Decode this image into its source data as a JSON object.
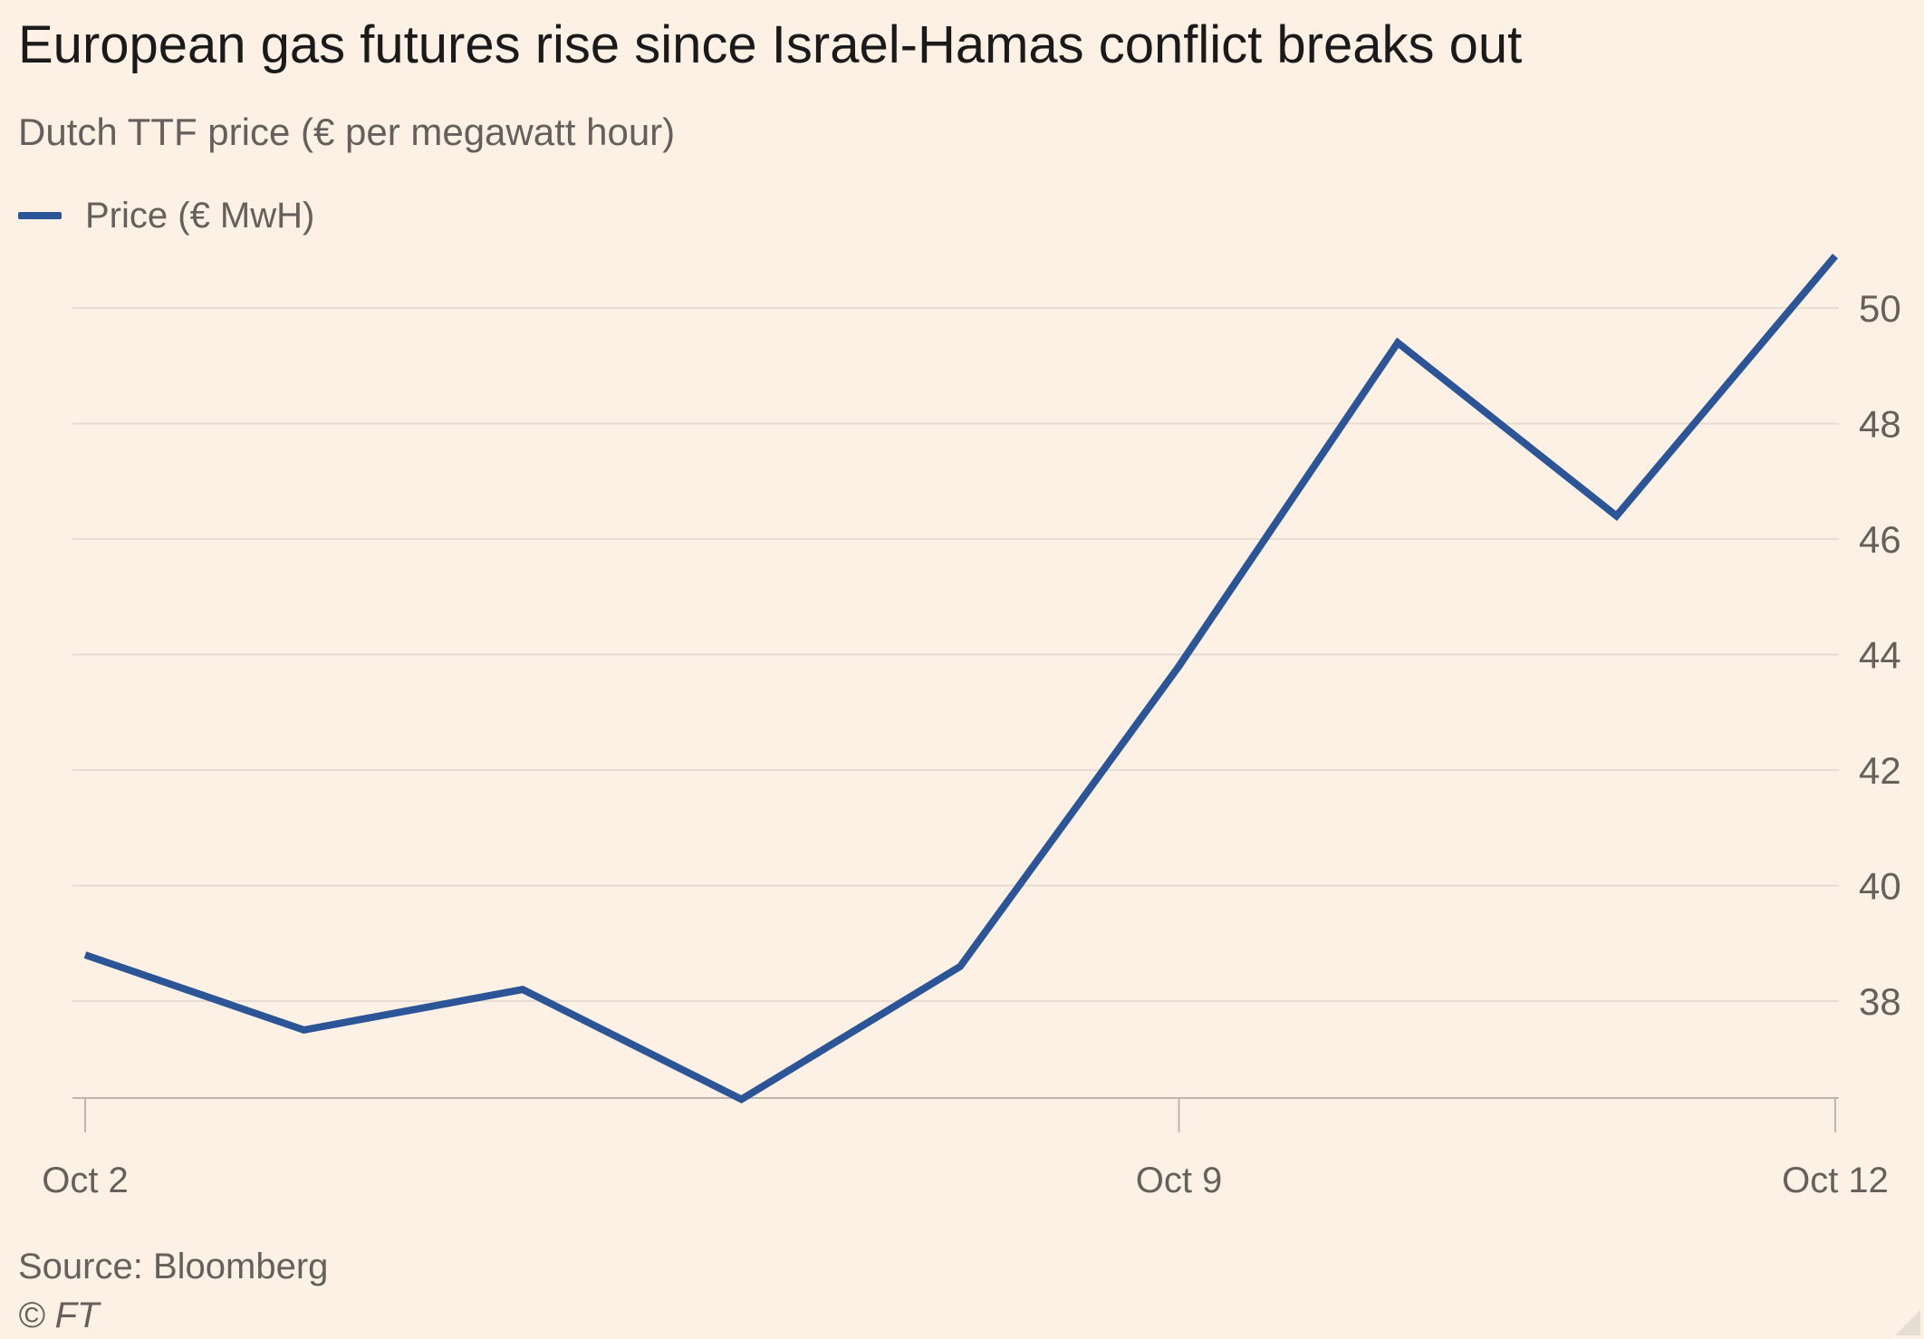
{
  "title": "European gas futures rise since Israel-Hamas conflict breaks out",
  "subtitle": "Dutch TTF price (€ per megawatt hour)",
  "legend": {
    "label": "Price (€ MwH)"
  },
  "footer": {
    "source": "Source: Bloomberg",
    "copyright": "© FT"
  },
  "colors": {
    "background": "#FDF1E6",
    "series": "#2B5597",
    "grid": "#E6DCD2",
    "axis": "#BDB6B0",
    "tick_text": "#66605c"
  },
  "chart_data": {
    "type": "line",
    "title": "European gas futures rise since Israel-Hamas conflict breaks out",
    "subtitle": "Dutch TTF price (€ per megawatt hour)",
    "xlabel": "",
    "ylabel": "",
    "x_tick_labels": [
      "Oct 2",
      "Oct 9",
      "Oct 12"
    ],
    "x_tick_index": [
      0,
      5,
      8
    ],
    "y_ticks": [
      38,
      40,
      42,
      44,
      46,
      48,
      50
    ],
    "y_tick_labels": [
      "38",
      "40",
      "42",
      "44",
      "46",
      "48",
      "50"
    ],
    "ylim": [
      36.3,
      51
    ],
    "y_axis_side": "right",
    "grid": true,
    "legend_position": "top-left",
    "series": [
      {
        "name": "Price (€ MwH)",
        "values": [
          38.8,
          37.5,
          38.2,
          36.3,
          38.6,
          43.8,
          49.4,
          46.4,
          50.9
        ]
      }
    ]
  }
}
